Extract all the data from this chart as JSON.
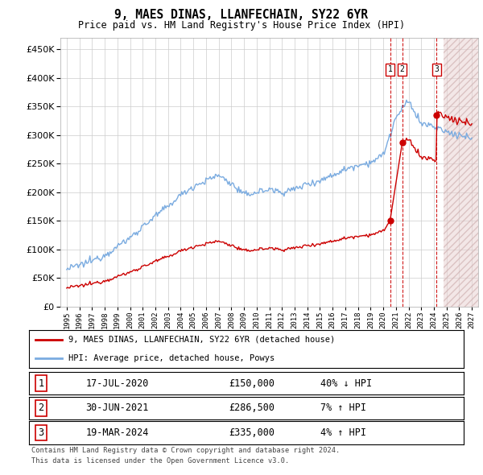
{
  "title": "9, MAES DINAS, LLANFECHAIN, SY22 6YR",
  "subtitle": "Price paid vs. HM Land Registry's House Price Index (HPI)",
  "legend_line1": "9, MAES DINAS, LLANFECHAIN, SY22 6YR (detached house)",
  "legend_line2": "HPI: Average price, detached house, Powys",
  "footer_line1": "Contains HM Land Registry data © Crown copyright and database right 2024.",
  "footer_line2": "This data is licensed under the Open Government Licence v3.0.",
  "transactions": [
    {
      "num": 1,
      "date": "17-JUL-2020",
      "price": 150000,
      "pct": "40%",
      "dir": "↓",
      "x_year": 2020.54
    },
    {
      "num": 2,
      "date": "30-JUN-2021",
      "price": 286500,
      "pct": "7%",
      "dir": "↑",
      "x_year": 2021.5
    },
    {
      "num": 3,
      "date": "19-MAR-2024",
      "price": 335000,
      "pct": "4%",
      "dir": "↑",
      "x_year": 2024.22
    }
  ],
  "hpi_color": "#7aabe0",
  "sale_color": "#cc0000",
  "vline_color": "#cc0000",
  "background_color": "#ffffff",
  "grid_color": "#cccccc",
  "ylim": [
    0,
    470000
  ],
  "yticks": [
    0,
    50000,
    100000,
    150000,
    200000,
    250000,
    300000,
    350000,
    400000,
    450000
  ],
  "xlim_start": 1994.5,
  "xlim_end": 2027.5,
  "future_shade_start": 2024.75,
  "hpi_anchors_x": [
    1995,
    1996,
    1997,
    1998,
    1999,
    2000,
    2001,
    2002,
    2003,
    2004,
    2005,
    2006,
    2007,
    2008,
    2009,
    2010,
    2011,
    2012,
    2013,
    2014,
    2015,
    2016,
    2017,
    2018,
    2019,
    2020,
    2021,
    2022,
    2023,
    2024,
    2025,
    2026,
    2027
  ],
  "hpi_anchors_y": [
    65000,
    72000,
    80000,
    90000,
    105000,
    120000,
    140000,
    158000,
    175000,
    195000,
    210000,
    220000,
    230000,
    215000,
    195000,
    200000,
    205000,
    200000,
    205000,
    215000,
    220000,
    230000,
    240000,
    248000,
    252000,
    265000,
    330000,
    360000,
    320000,
    315000,
    305000,
    300000,
    295000
  ]
}
